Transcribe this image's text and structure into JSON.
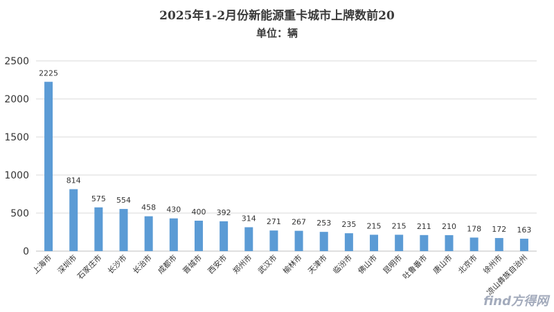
{
  "chart_data": {
    "type": "bar",
    "title": "2025年1-2月份新能源重卡城市上牌数前20",
    "subtitle": "单位：辆",
    "categories": [
      "上海市",
      "深圳市",
      "石家庄市",
      "长沙市",
      "长治市",
      "成都市",
      "晋城市",
      "西安市",
      "郑州市",
      "武汉市",
      "榆林市",
      "天津市",
      "临汾市",
      "佛山市",
      "昆明市",
      "吐鲁番市",
      "唐山市",
      "北京市",
      "徐州市",
      "凉山彝族自治州"
    ],
    "values": [
      2225,
      814,
      575,
      554,
      458,
      430,
      400,
      392,
      314,
      271,
      267,
      253,
      235,
      215,
      215,
      211,
      210,
      178,
      172,
      163
    ],
    "ylim": [
      0,
      2500
    ],
    "yticks": [
      0,
      500,
      1000,
      1500,
      2000,
      2500
    ],
    "grid": true,
    "legend": "none",
    "bar_color": "#5b9bd5"
  },
  "watermark": "find方得网"
}
